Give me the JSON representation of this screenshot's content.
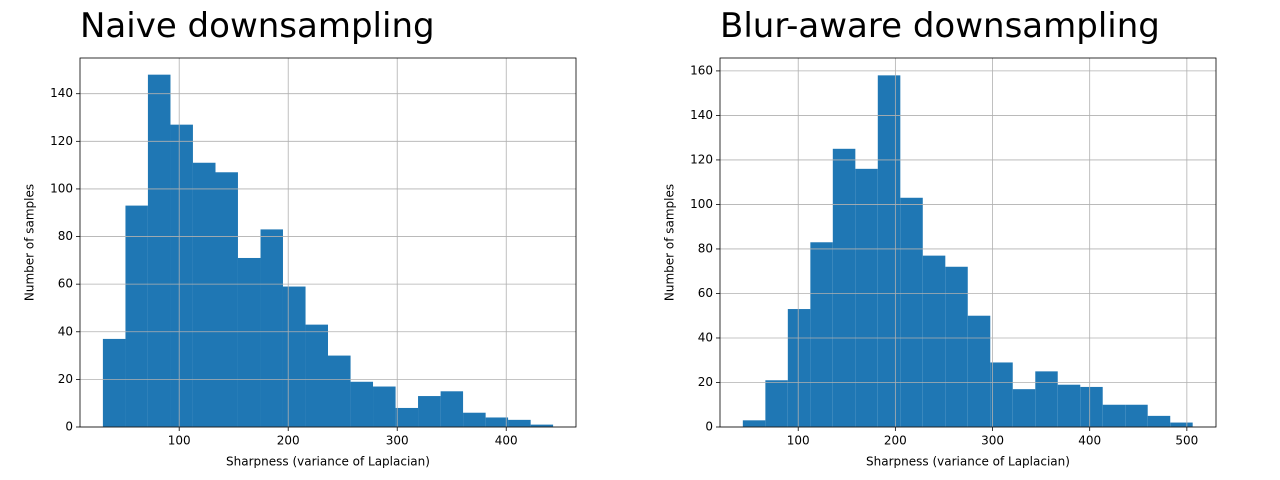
{
  "chart_data": [
    {
      "type": "histogram",
      "title": "Naive downsampling",
      "x_label": "Sharpness (variance of Laplacian)",
      "y_label": "Number of samples",
      "bins": [
        30,
        50.7,
        71.3,
        92,
        112.6,
        133.3,
        153.9,
        174.6,
        195.2,
        215.9,
        236.5,
        257.2,
        277.8,
        298.5,
        319.1,
        339.8,
        360.4,
        381.1,
        401.7,
        422.4,
        443
      ],
      "values": [
        37,
        93,
        148,
        127,
        111,
        107,
        71,
        83,
        59,
        43,
        30,
        19,
        17,
        8,
        13,
        15,
        6,
        4,
        3,
        1
      ],
      "color": "#1f77b4",
      "xlim": [
        9,
        464
      ],
      "xticks": [
        100,
        200,
        300,
        400
      ],
      "ylim": [
        0,
        155
      ],
      "yticks": [
        0,
        20,
        40,
        60,
        80,
        100,
        120,
        140
      ],
      "grid": true
    },
    {
      "type": "histogram",
      "title": "Blur-aware downsampling",
      "x_label": "Sharpness (variance of Laplacian)",
      "y_label": "Number of samples",
      "bins": [
        43,
        66.2,
        89.3,
        112.5,
        135.6,
        158.8,
        181.9,
        205.1,
        228.2,
        251.4,
        274.5,
        297.7,
        320.8,
        344,
        367.1,
        390.3,
        413.4,
        436.6,
        459.7,
        482.9,
        506
      ],
      "values": [
        3,
        21,
        53,
        83,
        125,
        116,
        158,
        103,
        77,
        72,
        50,
        29,
        17,
        25,
        19,
        18,
        10,
        10,
        5,
        2
      ],
      "color": "#1f77b4",
      "xlim": [
        19.5,
        530
      ],
      "xticks": [
        100,
        200,
        300,
        400,
        500
      ],
      "ylim": [
        0,
        165.8
      ],
      "yticks": [
        0,
        20,
        40,
        60,
        80,
        100,
        120,
        140,
        160
      ],
      "grid": true
    }
  ]
}
